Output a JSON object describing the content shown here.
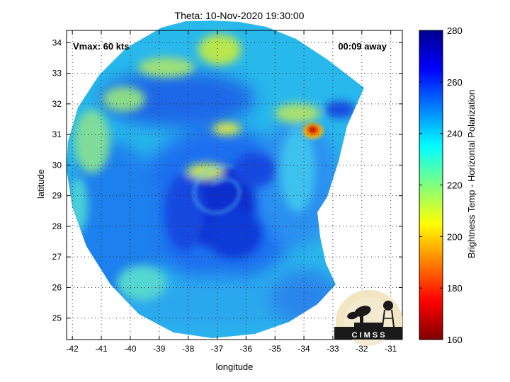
{
  "title": "Theta: 10-Nov-2020 19:30:00",
  "annotations": {
    "vmax": "Vmax: 60 kts",
    "time_away": "00:09 away"
  },
  "axes": {
    "xlabel": "longitude",
    "ylabel": "latitude",
    "xticks": [
      "-42",
      "-41",
      "-40",
      "-39",
      "-38",
      "-37",
      "-36",
      "-35",
      "-34",
      "-33",
      "-32",
      "-31"
    ],
    "yticks": [
      "25",
      "26",
      "27",
      "28",
      "29",
      "30",
      "31",
      "32",
      "33",
      "34"
    ],
    "xlim": [
      -42.2,
      -30.6
    ],
    "ylim": [
      24.3,
      34.4
    ],
    "grid": "dotted"
  },
  "colorbar": {
    "label": "Brightness Temp - Horizontal Polarization",
    "ticks": [
      "280",
      "260",
      "240",
      "220",
      "200",
      "180",
      "160"
    ],
    "range": [
      160,
      280
    ],
    "colormap": "jet"
  },
  "logo": {
    "text": "C I M S S"
  },
  "storm_center": {
    "lon": -36.7,
    "lat": 28.8
  },
  "colors": {
    "deep_blue": "#0a2ecf",
    "mid_blue": "#1e6ff0",
    "cyan": "#2ec8ee",
    "yellow_green": "#c0e64a",
    "red": "#c81414"
  }
}
